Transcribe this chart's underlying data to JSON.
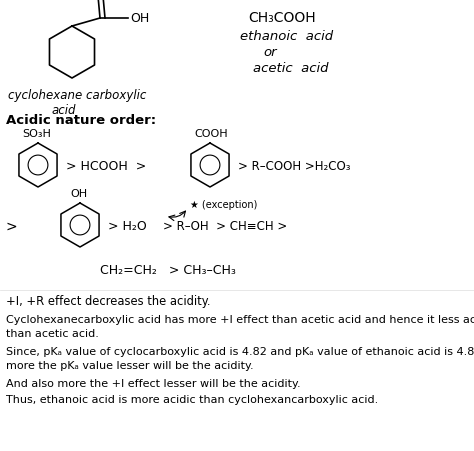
{
  "background_color": "#ffffff",
  "fig_width": 4.74,
  "fig_height": 4.51,
  "dpi": 100,
  "top_left": {
    "label_line1": "cyclohexane carboxylic",
    "label_line2": "acid"
  },
  "top_right": {
    "line1": "CH₃COOH",
    "line2": "ethanoic  acid",
    "line3": "or",
    "line4": "acetic  acid"
  },
  "section_title": "Acidic nature order:",
  "row1_text1": "> HCOOH  >",
  "row1_label1": "SO₃H",
  "row1_label2": "COOH",
  "row1_text2": "> R–COOH >H₂CO₃",
  "row2_gt": ">",
  "row2_label": "OH",
  "row2_text1": "> H₂O",
  "row2_exception": "★ (exception)",
  "row2_text2": "> R–OH  > CH≡CH >",
  "row3": "CH₂=CH₂   > CH₃–CH₃",
  "para1": "+I, +R effect decreases the acidity.",
  "para2a": "Cyclohexanecarboxylic acid has more +I effect than acetic acid and hence it less acidic",
  "para2b": "than acetic acid.",
  "para3a": "Since, pKₐ value of cyclocarboxylic acid is 4.82 and pKₐ value of ethanoic acid is 4.8",
  "para3b": "more the pKₐ value lesser will be the acidity.",
  "para4": "And also more the +I effect lesser will be the acidity.",
  "para5": "Thus, ethanoic acid is more acidic than cyclohexancarboxylic acid."
}
